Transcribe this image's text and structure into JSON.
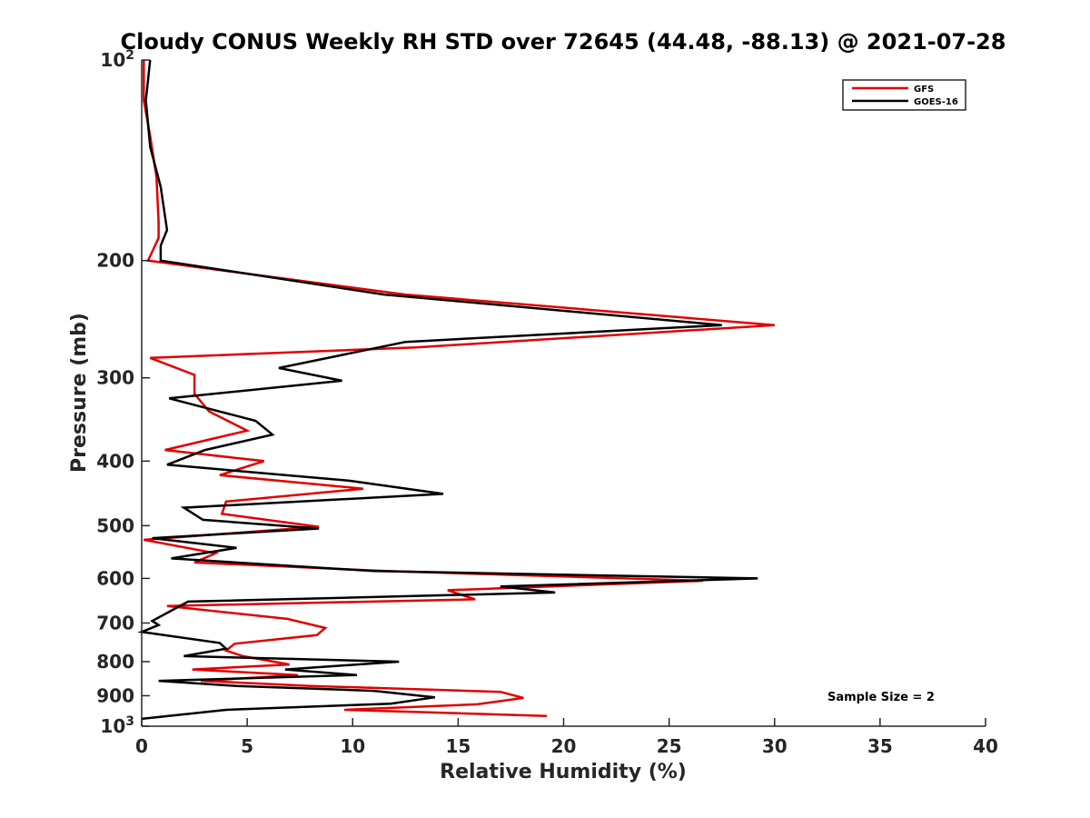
{
  "chart_data": {
    "type": "line",
    "title": "Cloudy CONUS Weekly RH STD over 72645 (44.48, -88.13) @ 2021-07-28",
    "xlabel": "Relative Humidity (%)",
    "ylabel": "Pressure (mb)",
    "xlim": [
      0,
      40
    ],
    "ylim": [
      100,
      1000
    ],
    "y_scale": "log",
    "y_reversed": true,
    "grid": false,
    "legend_position": "top-right",
    "x_ticks": [
      "0",
      "5",
      "10",
      "15",
      "20",
      "25",
      "30",
      "35",
      "40"
    ],
    "y_ticks": [
      {
        "value": 100,
        "label": "10",
        "exp": "2"
      },
      {
        "value": 200,
        "label": "200"
      },
      {
        "value": 300,
        "label": "300"
      },
      {
        "value": 400,
        "label": "400"
      },
      {
        "value": 500,
        "label": "500"
      },
      {
        "value": 600,
        "label": "600"
      },
      {
        "value": 700,
        "label": "700"
      },
      {
        "value": 800,
        "label": "800"
      },
      {
        "value": 900,
        "label": "900"
      },
      {
        "value": 1000,
        "label": "10",
        "exp": "3"
      }
    ],
    "series": [
      {
        "name": "GFS",
        "color": "#e00000",
        "points": [
          [
            0.1,
            100
          ],
          [
            0.1,
            115
          ],
          [
            0.4,
            130
          ],
          [
            0.7,
            150
          ],
          [
            0.8,
            175
          ],
          [
            0.8,
            185
          ],
          [
            0.3,
            200
          ],
          [
            12.5,
            225
          ],
          [
            30.0,
            250
          ],
          [
            13.0,
            270
          ],
          [
            0.4,
            280
          ],
          [
            2.5,
            297
          ],
          [
            2.5,
            317
          ],
          [
            3.2,
            337
          ],
          [
            5.0,
            360
          ],
          [
            1.1,
            385
          ],
          [
            5.8,
            400
          ],
          [
            3.7,
            420
          ],
          [
            10.5,
            440
          ],
          [
            4.0,
            460
          ],
          [
            3.8,
            480
          ],
          [
            8.4,
            502
          ],
          [
            0.1,
            525
          ],
          [
            3.5,
            550
          ],
          [
            2.5,
            568
          ],
          [
            11.6,
            585
          ],
          [
            26.6,
            605
          ],
          [
            14.5,
            625
          ],
          [
            15.8,
            645
          ],
          [
            1.2,
            660
          ],
          [
            6.9,
            690
          ],
          [
            8.7,
            712
          ],
          [
            8.3,
            730
          ],
          [
            4.4,
            752
          ],
          [
            4.0,
            770
          ],
          [
            4.8,
            785
          ],
          [
            7.0,
            808
          ],
          [
            2.4,
            822
          ],
          [
            7.4,
            838
          ],
          [
            2.8,
            855
          ],
          [
            8.0,
            870
          ],
          [
            17.0,
            888
          ],
          [
            18.1,
            907
          ],
          [
            15.9,
            927
          ],
          [
            9.6,
            945
          ],
          [
            19.2,
            965
          ]
        ]
      },
      {
        "name": "GOES-16",
        "color": "#000000",
        "points": [
          [
            0.4,
            100
          ],
          [
            0.2,
            115
          ],
          [
            0.4,
            135
          ],
          [
            0.9,
            155
          ],
          [
            1.2,
            180
          ],
          [
            0.9,
            190
          ],
          [
            0.9,
            200
          ],
          [
            11.5,
            225
          ],
          [
            27.5,
            250
          ],
          [
            12.5,
            265
          ],
          [
            6.5,
            290
          ],
          [
            9.5,
            303
          ],
          [
            1.3,
            322
          ],
          [
            5.4,
            348
          ],
          [
            6.2,
            365
          ],
          [
            3.0,
            385
          ],
          [
            1.2,
            405
          ],
          [
            9.8,
            428
          ],
          [
            14.3,
            448
          ],
          [
            2.0,
            470
          ],
          [
            2.9,
            490
          ],
          [
            8.4,
            505
          ],
          [
            0.5,
            522
          ],
          [
            4.5,
            540
          ],
          [
            1.4,
            560
          ],
          [
            11.0,
            585
          ],
          [
            29.2,
            600
          ],
          [
            17.0,
            617
          ],
          [
            19.6,
            630
          ],
          [
            2.2,
            650
          ],
          [
            0.5,
            695
          ],
          [
            0.8,
            705
          ],
          [
            0.0,
            722
          ],
          [
            3.7,
            750
          ],
          [
            4.0,
            765
          ],
          [
            2.0,
            785
          ],
          [
            12.2,
            800
          ],
          [
            6.8,
            822
          ],
          [
            10.2,
            838
          ],
          [
            0.8,
            855
          ],
          [
            4.5,
            870
          ],
          [
            11.0,
            885
          ],
          [
            13.9,
            905
          ],
          [
            11.8,
            925
          ],
          [
            4.0,
            945
          ],
          [
            0.0,
            975
          ]
        ]
      }
    ],
    "annotation": "Sample Size = 2"
  }
}
